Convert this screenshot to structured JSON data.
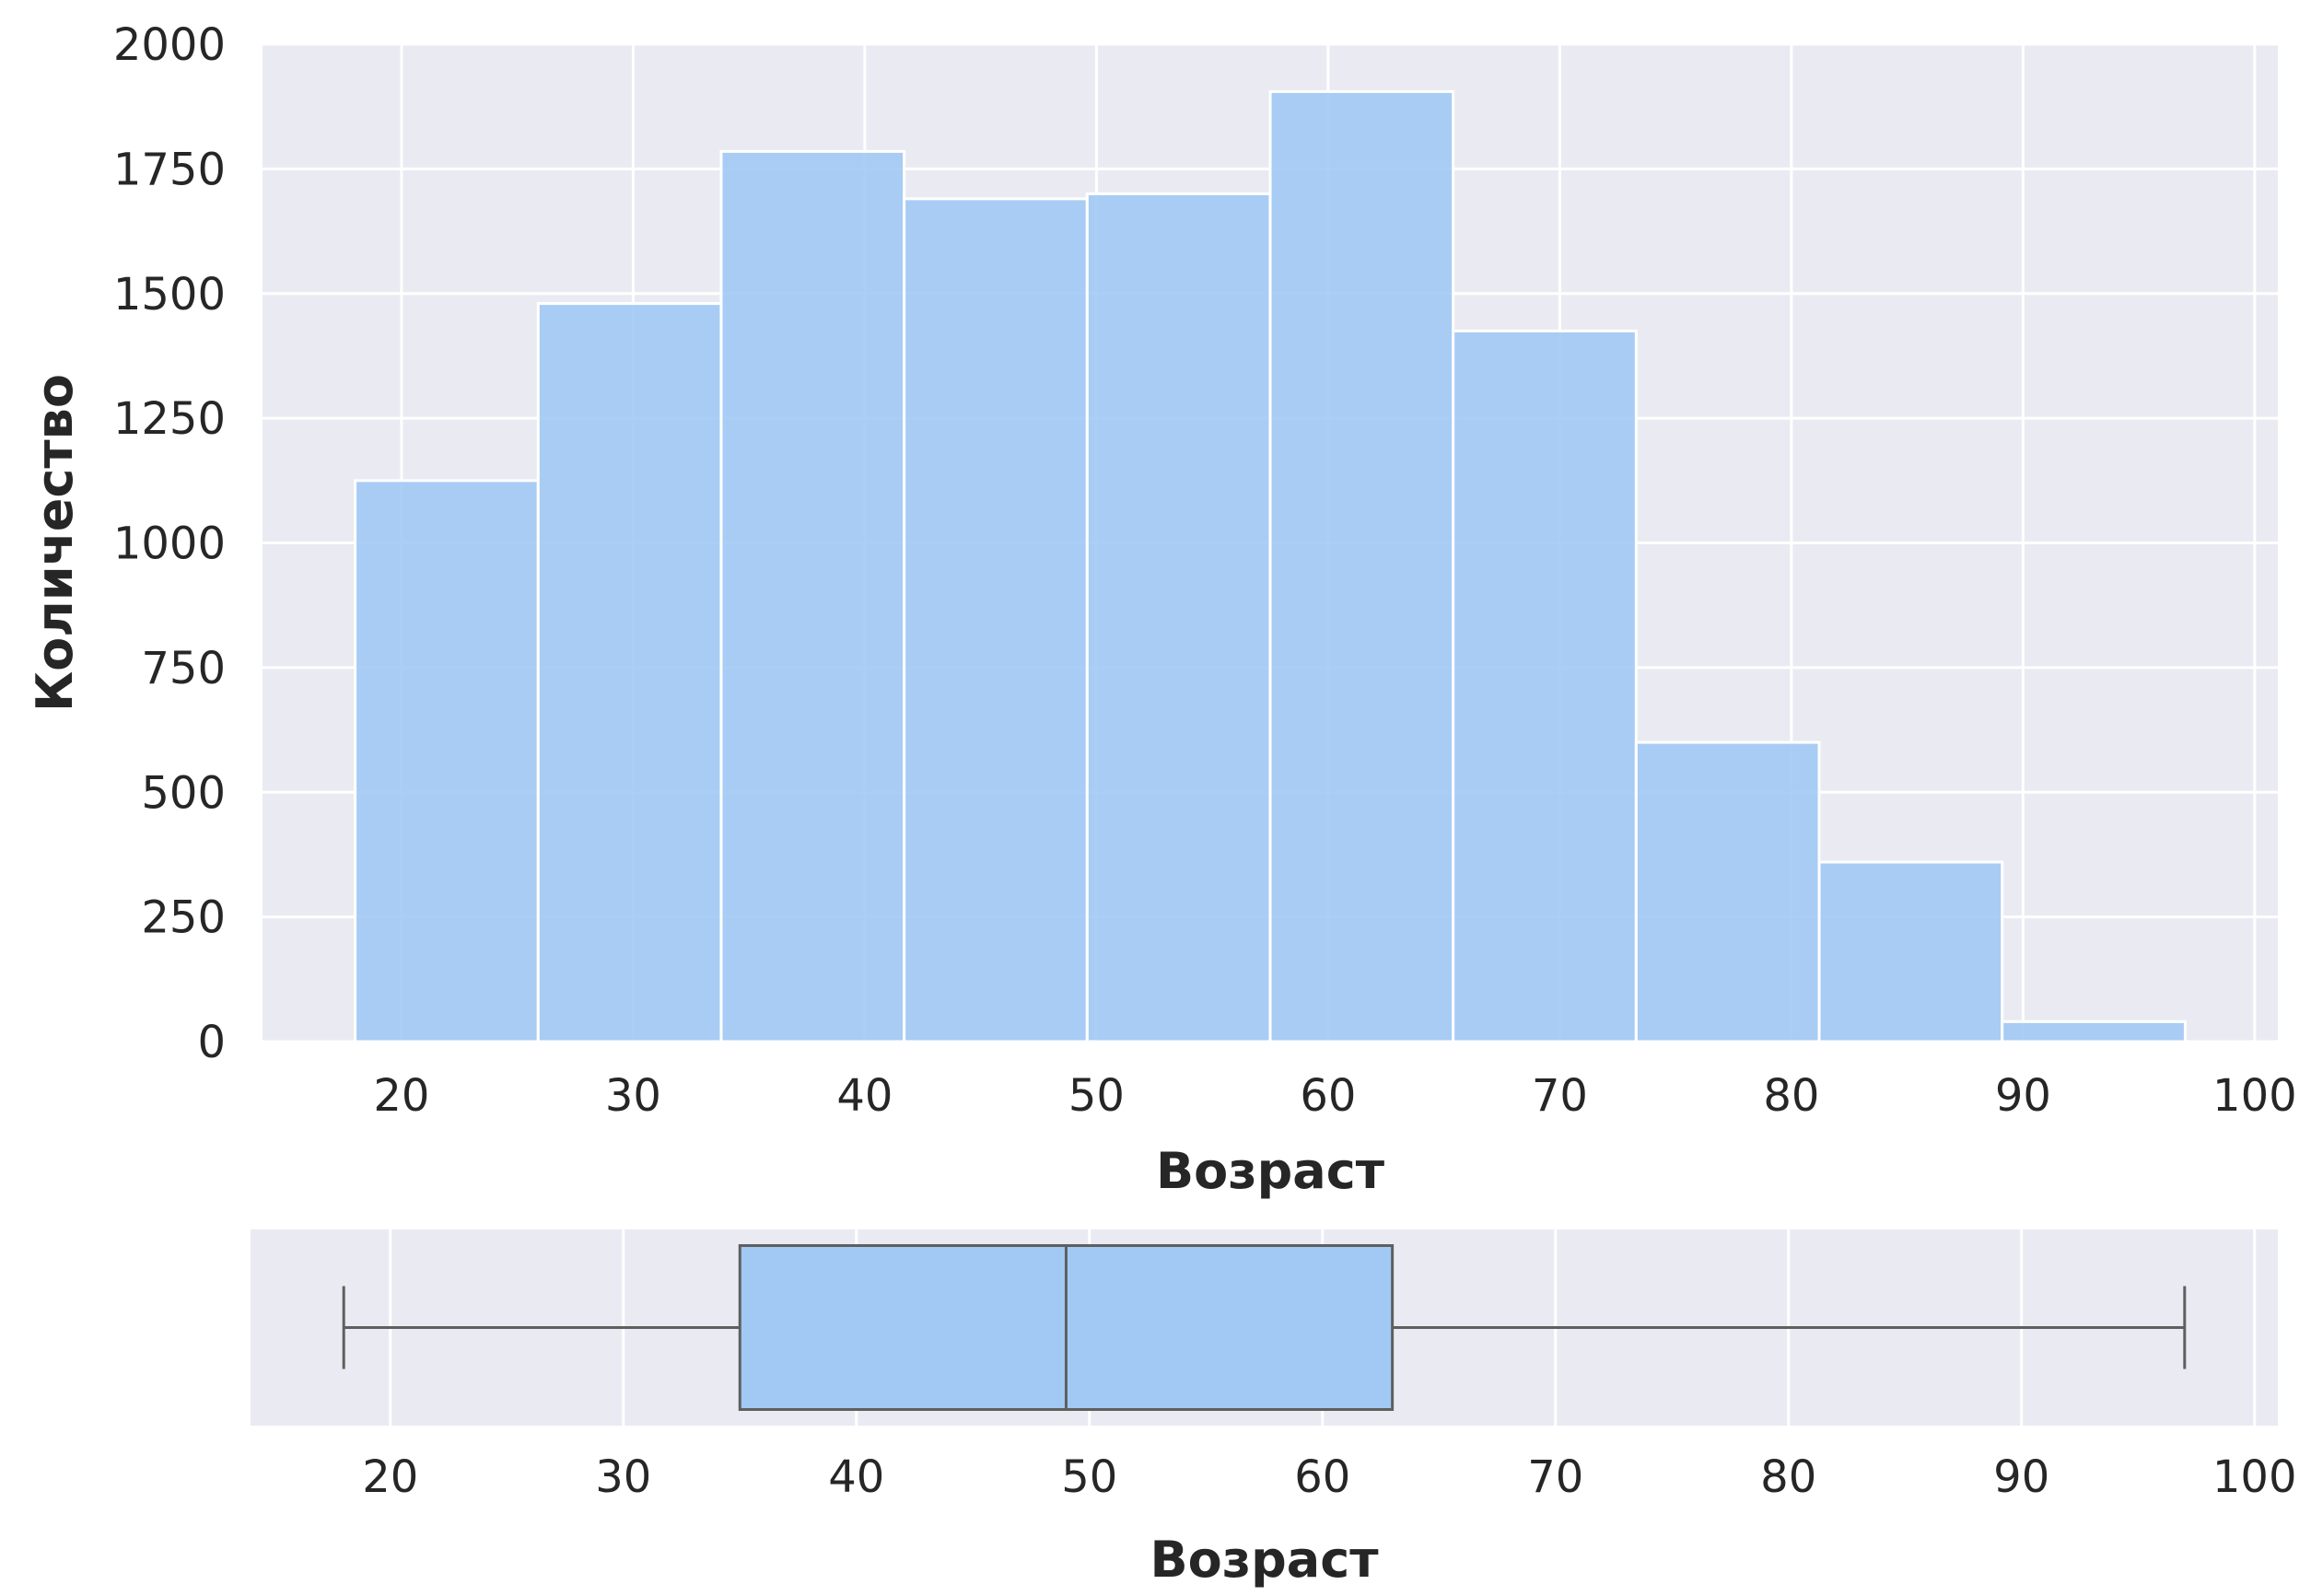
{
  "chart_data": [
    {
      "type": "histogram",
      "xlabel": "Возраст",
      "ylabel": "Количество",
      "xlim": [
        14,
        101
      ],
      "ylim": [
        0,
        2000
      ],
      "x_ticks": [
        20,
        30,
        40,
        50,
        60,
        70,
        80,
        90,
        100
      ],
      "y_ticks": [
        0,
        250,
        500,
        750,
        1000,
        1250,
        1500,
        1750,
        2000
      ],
      "bins": [
        {
          "start": 18.0,
          "end": 25.9,
          "count": 1125
        },
        {
          "start": 25.9,
          "end": 33.8,
          "count": 1480
        },
        {
          "start": 33.8,
          "end": 41.7,
          "count": 1785
        },
        {
          "start": 41.7,
          "end": 49.6,
          "count": 1690
        },
        {
          "start": 49.6,
          "end": 57.5,
          "count": 1700
        },
        {
          "start": 57.5,
          "end": 65.4,
          "count": 1905
        },
        {
          "start": 65.4,
          "end": 73.3,
          "count": 1425
        },
        {
          "start": 73.3,
          "end": 81.2,
          "count": 600
        },
        {
          "start": 81.2,
          "end": 89.1,
          "count": 360
        },
        {
          "start": 89.1,
          "end": 97.0,
          "count": 40
        }
      ],
      "bar_color": "#a1c9f4",
      "background_color": "#eaeaf2",
      "grid": true
    },
    {
      "type": "boxplot",
      "orientation": "horizontal",
      "xlabel": "Возраст",
      "xlim": [
        14,
        101
      ],
      "x_ticks": [
        20,
        30,
        40,
        50,
        60,
        70,
        80,
        90,
        100
      ],
      "min": 18,
      "q1": 35,
      "median": 49,
      "q3": 63,
      "max": 97,
      "box_color": "#a1c9f4",
      "line_color": "#5f5f5f",
      "background_color": "#eaeaf2",
      "grid": true
    }
  ]
}
